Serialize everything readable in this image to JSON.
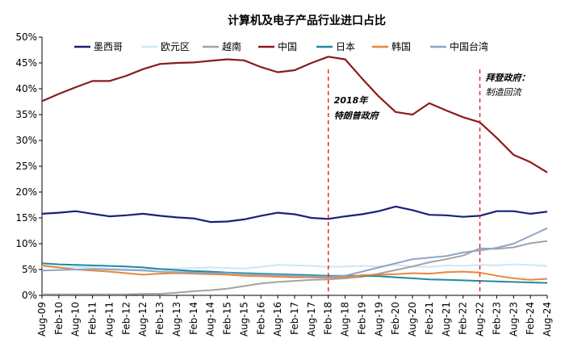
{
  "chart_data": {
    "type": "line",
    "title": "计算机及电子产品行业进口占比",
    "xlabel": "",
    "ylabel": "",
    "ylim": [
      0,
      50
    ],
    "y_ticks": [
      "0%",
      "5%",
      "10%",
      "15%",
      "20%",
      "25%",
      "30%",
      "35%",
      "40%",
      "45%",
      "50%"
    ],
    "x_ticks": [
      "Aug-09",
      "Feb-10",
      "Aug-10",
      "Feb-11",
      "Aug-11",
      "Feb-12",
      "Aug-12",
      "Feb-13",
      "Aug-13",
      "Feb-14",
      "Aug-14",
      "Feb-15",
      "Aug-15",
      "Feb-16",
      "Aug-16",
      "Feb-17",
      "Aug-17",
      "Feb-18",
      "Aug-18",
      "Feb-19",
      "Aug-19",
      "Feb-20",
      "Aug-20",
      "Feb-21",
      "Aug-21",
      "Feb-22",
      "Aug-22",
      "Feb-23",
      "Aug-23",
      "Feb-24",
      "Aug-24"
    ],
    "grid": false,
    "legend_position": "top",
    "series": [
      {
        "name": "墨西哥",
        "color": "#1a1f7a",
        "width": 2.2,
        "values": [
          15.8,
          16.0,
          16.3,
          15.8,
          15.3,
          15.5,
          15.8,
          15.4,
          15.1,
          14.9,
          14.2,
          14.3,
          14.7,
          15.4,
          16.0,
          15.7,
          15.0,
          14.8,
          15.3,
          15.7,
          16.3,
          17.2,
          16.5,
          15.6,
          15.5,
          15.2,
          15.4,
          16.3,
          16.3,
          15.8,
          16.2
        ]
      },
      {
        "name": "欧元区",
        "color": "#cfe6f4",
        "width": 2,
        "values": [
          5.6,
          5.3,
          5.5,
          5.4,
          5.2,
          5.1,
          5.0,
          5.1,
          5.2,
          5.3,
          5.4,
          5.3,
          5.2,
          5.5,
          5.9,
          5.8,
          5.7,
          5.5,
          5.6,
          5.7,
          5.6,
          5.9,
          5.6,
          5.5,
          5.8,
          5.7,
          5.9,
          5.8,
          6.0,
          5.9,
          5.7
        ]
      },
      {
        "name": "越南",
        "color": "#a3a3a3",
        "width": 2,
        "values": [
          0.2,
          0.2,
          0.2,
          0.2,
          0.2,
          0.2,
          0.3,
          0.3,
          0.5,
          0.8,
          1.0,
          1.3,
          1.8,
          2.3,
          2.6,
          2.8,
          3.0,
          3.1,
          3.3,
          3.6,
          4.2,
          4.9,
          5.6,
          6.4,
          7.0,
          7.7,
          9.1,
          9.0,
          9.3,
          10.1,
          10.5
        ]
      },
      {
        "name": "中国",
        "color": "#8b1a1a",
        "width": 2.2,
        "values": [
          37.6,
          39.0,
          40.3,
          41.5,
          41.5,
          42.5,
          43.8,
          44.8,
          45.0,
          45.1,
          45.4,
          45.7,
          45.5,
          44.2,
          43.2,
          43.6,
          45.0,
          46.2,
          45.7,
          42.0,
          38.5,
          35.5,
          35.0,
          37.2,
          35.8,
          34.5,
          33.5,
          30.5,
          27.2,
          25.8,
          23.8
        ]
      },
      {
        "name": "日本",
        "color": "#1f8aa0",
        "width": 2,
        "values": [
          6.2,
          6.0,
          5.9,
          5.8,
          5.7,
          5.6,
          5.4,
          5.1,
          4.9,
          4.7,
          4.6,
          4.4,
          4.3,
          4.2,
          4.1,
          4.0,
          3.9,
          3.8,
          3.8,
          3.8,
          3.7,
          3.5,
          3.3,
          3.1,
          3.0,
          2.9,
          2.8,
          2.7,
          2.6,
          2.5,
          2.4
        ]
      },
      {
        "name": "韩国",
        "color": "#e8883a",
        "width": 2,
        "values": [
          5.8,
          5.4,
          5.0,
          4.8,
          4.6,
          4.3,
          4.0,
          4.2,
          4.3,
          4.2,
          4.1,
          4.0,
          3.8,
          3.7,
          3.6,
          3.5,
          3.5,
          3.4,
          3.5,
          3.9,
          4.0,
          4.1,
          4.3,
          4.2,
          4.5,
          4.6,
          4.4,
          3.8,
          3.3,
          3.0,
          3.2
        ]
      },
      {
        "name": "中国台湾",
        "color": "#8ea5c8",
        "width": 2,
        "values": [
          4.8,
          4.9,
          5.0,
          5.1,
          5.0,
          4.9,
          4.8,
          4.6,
          4.5,
          4.4,
          4.3,
          4.3,
          4.1,
          4.0,
          3.9,
          3.8,
          3.7,
          3.6,
          3.8,
          4.6,
          5.4,
          6.2,
          7.0,
          7.3,
          7.6,
          8.3,
          8.7,
          9.2,
          10.0,
          11.5,
          13.0
        ]
      }
    ],
    "annotations": [
      {
        "line1": "2018年",
        "line2": "特朗普政府",
        "x_index": 17
      },
      {
        "line1": "拜登政府：",
        "line2": "制造回流",
        "x_index": 26
      }
    ]
  }
}
